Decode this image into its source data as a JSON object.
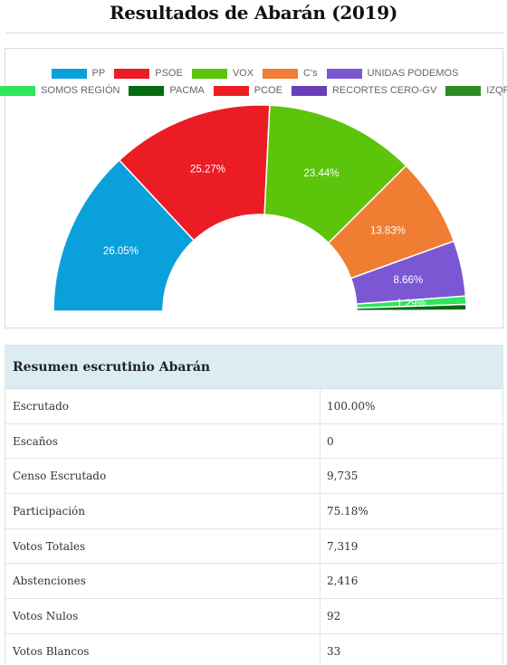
{
  "page": {
    "title": "Resultados de Abarán (2019)"
  },
  "chart_data": {
    "type": "pie",
    "variant": "semicircle-donut",
    "title": "",
    "legend_placement": "top-center",
    "series": [
      {
        "name": "PP",
        "value": 26.05,
        "label": "26.05%",
        "color": "#0aa0dc"
      },
      {
        "name": "PSOE",
        "value": 25.27,
        "label": "25.27%",
        "color": "#ec1c24"
      },
      {
        "name": "VOX",
        "value": 23.44,
        "label": "23.44%",
        "color": "#5bc40b"
      },
      {
        "name": "C's",
        "value": 13.83,
        "label": "13.83%",
        "color": "#ef7d32"
      },
      {
        "name": "UNIDAS PODEMOS",
        "value": 8.66,
        "label": "8.66%",
        "color": "#7b57d4"
      },
      {
        "name": "SOMOS REGIÓN",
        "value": 1.29,
        "label": "1.29%",
        "color": "#2ee55c"
      },
      {
        "name": "PACMA",
        "value": 0.9,
        "label": "",
        "color": "#046b0e"
      },
      {
        "name": "PCOE",
        "value": 0.05,
        "label": "",
        "color": "#ec1c24"
      },
      {
        "name": "RECORTES CERO-GV",
        "value": 0.05,
        "label": "",
        "color": "#6a3fb8"
      },
      {
        "name": "IZQP",
        "value": 0.05,
        "label": "",
        "color": "#2e8b22"
      }
    ]
  },
  "summary": {
    "heading": "Resumen escrutinio Abarán",
    "rows": [
      {
        "label": "Escrutado",
        "value": "100.00%"
      },
      {
        "label": "Escaños",
        "value": "0"
      },
      {
        "label": "Censo Escrutado",
        "value": "9,735"
      },
      {
        "label": "Participación",
        "value": "75.18%"
      },
      {
        "label": "Votos Totales",
        "value": "7,319"
      },
      {
        "label": "Abstenciones",
        "value": "2,416"
      },
      {
        "label": "Votos Nulos",
        "value": "92"
      },
      {
        "label": "Votos Blancos",
        "value": "33"
      }
    ]
  }
}
